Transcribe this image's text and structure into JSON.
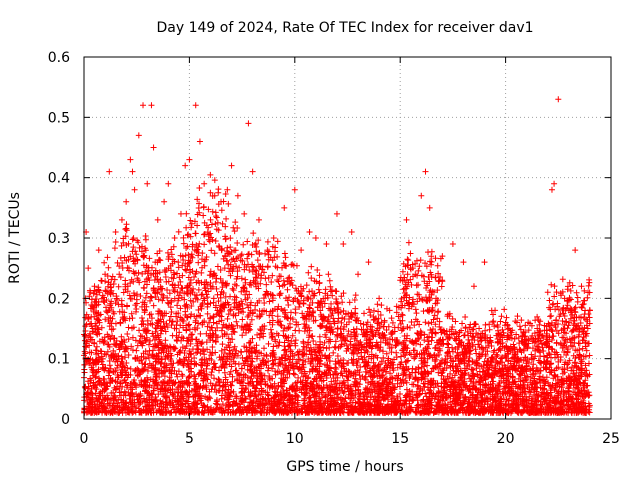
{
  "chart_data": {
    "type": "scatter",
    "title": "Day 149 of 2024, Rate Of TEC Index for receiver dav1",
    "xlabel": "GPS time / hours",
    "ylabel": "ROTI / TECUs",
    "xlim": [
      0,
      25
    ],
    "ylim": [
      0,
      0.6
    ],
    "xticks": [
      0,
      5,
      10,
      15,
      20,
      25
    ],
    "xtick_labels": [
      "0",
      "5",
      "10",
      "15",
      "20",
      "25"
    ],
    "yticks": [
      0,
      0.1,
      0.2,
      0.3,
      0.4,
      0.5,
      0.6
    ],
    "ytick_labels": [
      "0",
      "0.1",
      "0.2",
      "0.3",
      "0.4",
      "0.5",
      "0.6"
    ],
    "grid": true,
    "marker": "plus",
    "color": "#ff0000",
    "series": [
      {
        "x": [
          0.0,
          0.1,
          0.2,
          0.3,
          0.5,
          0.7,
          1.0,
          1.2,
          1.5,
          1.8,
          2.0,
          2.2,
          2.3,
          2.4,
          2.6,
          2.8,
          3.0,
          3.2,
          3.3,
          3.5,
          3.8,
          4.0,
          4.3,
          4.6,
          4.8,
          5.0,
          5.3,
          5.5,
          5.7,
          6.0,
          6.2,
          6.5,
          6.8,
          7.0,
          7.3,
          7.6,
          7.8,
          8.0,
          8.3,
          8.7,
          9.0,
          9.5,
          10.0,
          10.3,
          10.7,
          11.0,
          11.5,
          12.0,
          12.3,
          12.7,
          13.0,
          13.5,
          14.0,
          14.5,
          15.0,
          15.3,
          15.6,
          16.0,
          16.2,
          16.4,
          16.7,
          17.0,
          17.5,
          18.0,
          18.5,
          19.0,
          19.5,
          20.0,
          20.5,
          21.0,
          21.5,
          22.0,
          22.2,
          22.3,
          22.5,
          22.8,
          23.0,
          23.3,
          23.6,
          23.9
        ],
        "y": [
          0.14,
          0.31,
          0.25,
          0.21,
          0.22,
          0.28,
          0.24,
          0.41,
          0.31,
          0.33,
          0.36,
          0.43,
          0.41,
          0.38,
          0.47,
          0.52,
          0.39,
          0.52,
          0.45,
          0.33,
          0.36,
          0.39,
          0.3,
          0.34,
          0.42,
          0.43,
          0.52,
          0.46,
          0.39,
          0.33,
          0.37,
          0.36,
          0.38,
          0.42,
          0.37,
          0.34,
          0.49,
          0.41,
          0.33,
          0.28,
          0.3,
          0.35,
          0.38,
          0.28,
          0.31,
          0.3,
          0.29,
          0.34,
          0.29,
          0.31,
          0.24,
          0.26,
          0.2,
          0.18,
          0.23,
          0.33,
          0.25,
          0.37,
          0.41,
          0.35,
          0.2,
          0.27,
          0.29,
          0.26,
          0.22,
          0.26,
          0.18,
          0.16,
          0.14,
          0.13,
          0.15,
          0.21,
          0.38,
          0.39,
          0.53,
          0.2,
          0.18,
          0.28,
          0.22,
          0.15
        ]
      }
    ]
  }
}
